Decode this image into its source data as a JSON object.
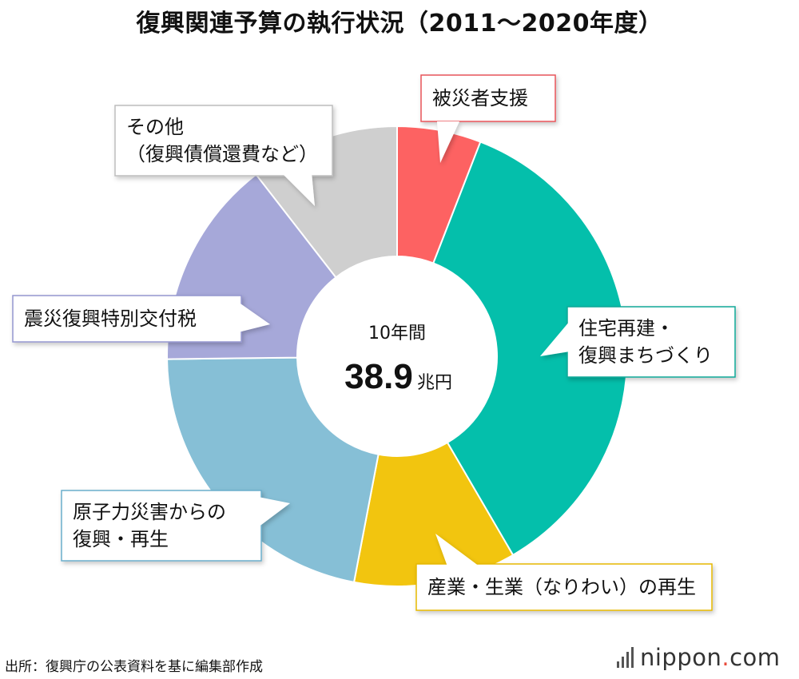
{
  "title": "復興関連予算の執行状況（2011〜2020年度）",
  "center": {
    "label": "10年間",
    "total": "38.9",
    "unit": "兆円"
  },
  "chart_data": {
    "type": "pie",
    "title": "復興関連予算の執行状況（2011〜2020年度）",
    "total": 38.9,
    "total_unit": "兆円",
    "value_unit": "%",
    "categories": [
      "被災者支援",
      "住宅再建・復興まちづくり",
      "産業・生業（なりわい）の再生",
      "原子力災害からの復興・再生",
      "震災復興特別交付税",
      "その他（復興債償還費など）"
    ],
    "values": [
      5.9,
      35.7,
      11.4,
      21.8,
      14.7,
      10.5
    ],
    "colors": [
      "#fd6262",
      "#04bfab",
      "#f2c50f",
      "#86bfd6",
      "#a6a8d9",
      "#cfcfcf"
    ],
    "legend": "callouts",
    "start_angle": "top",
    "direction": "clockwise"
  },
  "callouts": [
    {
      "lines": [
        "被災者支援"
      ],
      "border": "#e8555a"
    },
    {
      "lines": [
        "住宅再建・",
        "復興まちづくり"
      ],
      "border": "#10a897"
    },
    {
      "lines": [
        "産業・生業（なりわい）の再生"
      ],
      "border": "#e6b800"
    },
    {
      "lines": [
        "原子力災害からの",
        "復興・再生"
      ],
      "border": "#6aaecb"
    },
    {
      "lines": [
        "震災復興特別交付税"
      ],
      "border": "#9496cf"
    },
    {
      "lines": [
        "その他",
        "（復興債償還費など）"
      ],
      "border": "#bdbdbd"
    }
  ],
  "source": "出所：復興庁の公表資料を基に編集部作成",
  "brand": {
    "name": "nippon",
    "dot": ".",
    "tld": "com"
  }
}
